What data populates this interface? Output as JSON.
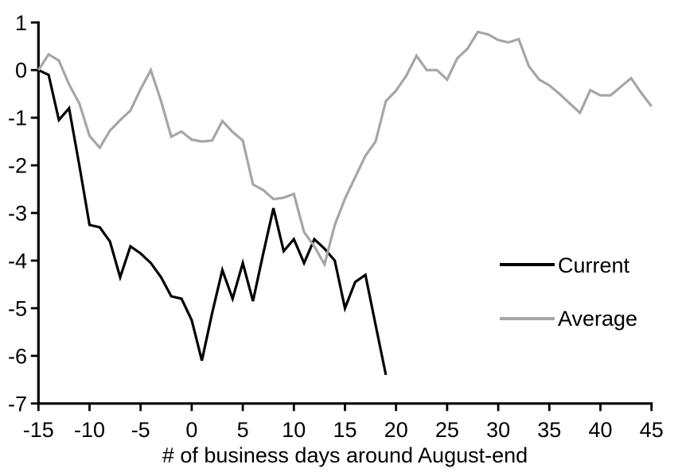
{
  "chart_data": {
    "type": "line",
    "title": "",
    "xlabel": "# of business days around August-end",
    "ylabel": "",
    "xlim": [
      -15,
      45
    ],
    "ylim": [
      -7,
      1
    ],
    "xticks": [
      -15,
      -10,
      -5,
      0,
      5,
      10,
      15,
      20,
      25,
      30,
      35,
      40,
      45
    ],
    "yticks": [
      1,
      0,
      -1,
      -2,
      -3,
      -4,
      -5,
      -6,
      -7
    ],
    "grid": false,
    "legend_position": "right-middle",
    "axis_color": "#000000",
    "background_color": "#ffffff",
    "series": [
      {
        "name": "Current",
        "color": "#000000",
        "x": [
          -15,
          -14,
          -13,
          -12,
          -11,
          -10,
          -9,
          -8,
          -7,
          -6,
          -5,
          -4,
          -3,
          -2,
          -1,
          0,
          1,
          2,
          3,
          4,
          5,
          6,
          7,
          8,
          9,
          10,
          11,
          12,
          13,
          14,
          15,
          16,
          17,
          18,
          19
        ],
        "values": [
          0,
          -0.1,
          -1.05,
          -0.8,
          -2.0,
          -3.25,
          -3.3,
          -3.6,
          -4.35,
          -3.7,
          -3.85,
          -4.05,
          -4.35,
          -4.75,
          -4.8,
          -5.25,
          -6.1,
          -5.1,
          -4.2,
          -4.8,
          -4.05,
          -4.85,
          -3.85,
          -2.9,
          -3.8,
          -3.55,
          -4.05,
          -3.55,
          -3.75,
          -4.0,
          -5.0,
          -4.45,
          -4.3,
          -5.35,
          -6.4
        ]
      },
      {
        "name": "Average",
        "color": "#a6a6a6",
        "x": [
          -15,
          -14,
          -13,
          -12,
          -11,
          -10,
          -9,
          -8,
          -7,
          -6,
          -5,
          -4,
          -3,
          -2,
          -1,
          0,
          1,
          2,
          3,
          4,
          5,
          6,
          7,
          8,
          9,
          10,
          11,
          12,
          13,
          14,
          15,
          16,
          17,
          18,
          19,
          20,
          21,
          22,
          23,
          24,
          25,
          26,
          27,
          28,
          29,
          30,
          31,
          32,
          33,
          34,
          35,
          36,
          37,
          38,
          39,
          40,
          41,
          42,
          43,
          44,
          45
        ],
        "values": [
          0,
          0.33,
          0.2,
          -0.3,
          -0.7,
          -1.38,
          -1.63,
          -1.27,
          -1.05,
          -0.85,
          -0.4,
          0.0,
          -0.65,
          -1.4,
          -1.29,
          -1.46,
          -1.5,
          -1.48,
          -1.07,
          -1.3,
          -1.48,
          -2.4,
          -2.52,
          -2.71,
          -2.68,
          -2.6,
          -3.4,
          -3.7,
          -4.08,
          -3.25,
          -2.7,
          -2.25,
          -1.8,
          -1.5,
          -0.65,
          -0.43,
          -0.12,
          0.3,
          0.0,
          0.0,
          -0.2,
          0.25,
          0.45,
          0.8,
          0.75,
          0.63,
          0.58,
          0.65,
          0.08,
          -0.2,
          -0.32,
          -0.5,
          -0.7,
          -0.9,
          -0.42,
          -0.53,
          -0.53,
          -0.35,
          -0.17,
          -0.48,
          -0.76
        ]
      }
    ]
  }
}
